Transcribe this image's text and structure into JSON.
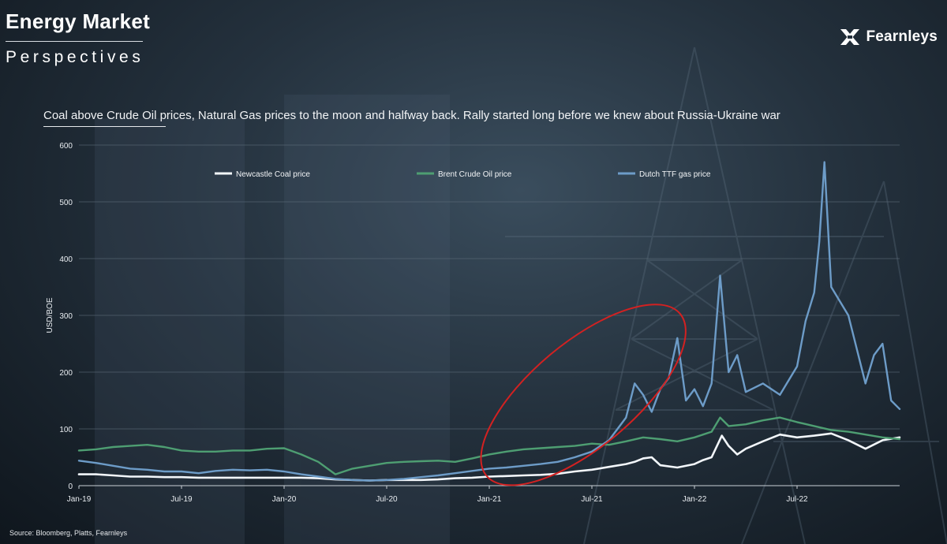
{
  "header": {
    "title": "Energy Market",
    "subtitle": "Perspectives",
    "brand": "Fearnleys"
  },
  "colors": {
    "coal": "#f2f6fa",
    "oil": "#4e9e72",
    "gas": "#6d9cc8",
    "ellipse": "#d32121",
    "grid": "#5d6c79"
  },
  "chart_data": {
    "type": "line",
    "title": "Coal above Crude Oil prices, Natural Gas prices to the moon and halfway back. Rally started long before we knew about Russia-Ukraine war",
    "xlabel": "",
    "ylabel": "USD/BOE",
    "ylim": [
      0,
      600
    ],
    "xlim": [
      0,
      48
    ],
    "x_unit": "months since Jan-19",
    "y_ticks": [
      "0",
      "100",
      "200",
      "300",
      "400",
      "500",
      "600"
    ],
    "x_ticks": [
      {
        "x": 0,
        "label": "Jan-19"
      },
      {
        "x": 6,
        "label": "Jul-19"
      },
      {
        "x": 12,
        "label": "Jan-20"
      },
      {
        "x": 18,
        "label": "Jul-20"
      },
      {
        "x": 24,
        "label": "Jan-21"
      },
      {
        "x": 30,
        "label": "Jul-21"
      },
      {
        "x": 36,
        "label": "Jan-22"
      },
      {
        "x": 42,
        "label": "Jul-22"
      }
    ],
    "legend": "top",
    "grid": true,
    "annotation": {
      "type": "ellipse",
      "note": "red ellipse highlighting rally start, approx Mar-21 to Feb-22"
    },
    "series": [
      {
        "name": "Newcastle Coal price",
        "key": "coal",
        "points": [
          [
            0,
            20
          ],
          [
            1,
            20
          ],
          [
            2,
            18
          ],
          [
            3,
            16
          ],
          [
            4,
            16
          ],
          [
            5,
            15
          ],
          [
            6,
            15
          ],
          [
            7,
            14
          ],
          [
            8,
            14
          ],
          [
            9,
            14
          ],
          [
            10,
            14
          ],
          [
            11,
            14
          ],
          [
            12,
            14
          ],
          [
            13,
            14
          ],
          [
            14,
            13
          ],
          [
            15,
            11
          ],
          [
            16,
            10
          ],
          [
            17,
            9
          ],
          [
            18,
            10
          ],
          [
            19,
            10
          ],
          [
            20,
            10
          ],
          [
            21,
            11
          ],
          [
            22,
            13
          ],
          [
            23,
            14
          ],
          [
            24,
            16
          ],
          [
            25,
            17
          ],
          [
            26,
            18
          ],
          [
            27,
            19
          ],
          [
            28,
            21
          ],
          [
            29,
            25
          ],
          [
            30,
            28
          ],
          [
            31,
            33
          ],
          [
            32,
            38
          ],
          [
            32.5,
            42
          ],
          [
            33,
            48
          ],
          [
            33.5,
            50
          ],
          [
            34,
            36
          ],
          [
            35,
            32
          ],
          [
            36,
            38
          ],
          [
            36.5,
            45
          ],
          [
            37,
            50
          ],
          [
            37.6,
            88
          ],
          [
            38,
            70
          ],
          [
            38.5,
            55
          ],
          [
            39,
            65
          ],
          [
            40,
            78
          ],
          [
            41,
            90
          ],
          [
            42,
            85
          ],
          [
            43,
            88
          ],
          [
            44,
            92
          ],
          [
            45,
            80
          ],
          [
            46,
            65
          ],
          [
            47,
            80
          ],
          [
            48,
            85
          ]
        ]
      },
      {
        "name": "Brent Crude Oil price",
        "key": "oil",
        "points": [
          [
            0,
            62
          ],
          [
            1,
            64
          ],
          [
            2,
            68
          ],
          [
            3,
            70
          ],
          [
            4,
            72
          ],
          [
            5,
            68
          ],
          [
            6,
            62
          ],
          [
            7,
            60
          ],
          [
            8,
            60
          ],
          [
            9,
            62
          ],
          [
            10,
            62
          ],
          [
            11,
            65
          ],
          [
            12,
            66
          ],
          [
            13,
            55
          ],
          [
            14,
            42
          ],
          [
            15,
            20
          ],
          [
            16,
            30
          ],
          [
            17,
            35
          ],
          [
            18,
            40
          ],
          [
            19,
            42
          ],
          [
            20,
            43
          ],
          [
            21,
            44
          ],
          [
            22,
            42
          ],
          [
            23,
            48
          ],
          [
            24,
            55
          ],
          [
            25,
            60
          ],
          [
            26,
            64
          ],
          [
            27,
            66
          ],
          [
            28,
            68
          ],
          [
            29,
            70
          ],
          [
            30,
            74
          ],
          [
            31,
            72
          ],
          [
            32,
            78
          ],
          [
            33,
            85
          ],
          [
            34,
            82
          ],
          [
            35,
            78
          ],
          [
            36,
            85
          ],
          [
            37,
            95
          ],
          [
            37.5,
            120
          ],
          [
            38,
            105
          ],
          [
            39,
            108
          ],
          [
            40,
            115
          ],
          [
            41,
            120
          ],
          [
            42,
            112
          ],
          [
            43,
            105
          ],
          [
            44,
            98
          ],
          [
            45,
            95
          ],
          [
            46,
            90
          ],
          [
            47,
            85
          ],
          [
            48,
            82
          ]
        ]
      },
      {
        "name": "Dutch TTF gas price",
        "key": "gas",
        "points": [
          [
            0,
            44
          ],
          [
            1,
            40
          ],
          [
            2,
            35
          ],
          [
            3,
            30
          ],
          [
            4,
            28
          ],
          [
            5,
            25
          ],
          [
            6,
            25
          ],
          [
            7,
            22
          ],
          [
            8,
            26
          ],
          [
            9,
            28
          ],
          [
            10,
            27
          ],
          [
            11,
            28
          ],
          [
            12,
            25
          ],
          [
            13,
            20
          ],
          [
            14,
            16
          ],
          [
            15,
            12
          ],
          [
            16,
            10
          ],
          [
            17,
            9
          ],
          [
            18,
            10
          ],
          [
            19,
            12
          ],
          [
            20,
            15
          ],
          [
            21,
            18
          ],
          [
            22,
            22
          ],
          [
            23,
            26
          ],
          [
            24,
            30
          ],
          [
            25,
            32
          ],
          [
            26,
            35
          ],
          [
            27,
            38
          ],
          [
            28,
            42
          ],
          [
            29,
            50
          ],
          [
            30,
            60
          ],
          [
            31,
            80
          ],
          [
            32,
            120
          ],
          [
            32.5,
            180
          ],
          [
            33,
            160
          ],
          [
            33.5,
            130
          ],
          [
            34,
            170
          ],
          [
            34.5,
            190
          ],
          [
            35,
            260
          ],
          [
            35.5,
            150
          ],
          [
            36,
            170
          ],
          [
            36.5,
            140
          ],
          [
            37,
            180
          ],
          [
            37.5,
            370
          ],
          [
            38,
            200
          ],
          [
            38.5,
            230
          ],
          [
            39,
            165
          ],
          [
            40,
            180
          ],
          [
            41,
            160
          ],
          [
            42,
            210
          ],
          [
            42.5,
            290
          ],
          [
            43,
            340
          ],
          [
            43.3,
            430
          ],
          [
            43.6,
            570
          ],
          [
            44,
            350
          ],
          [
            45,
            300
          ],
          [
            46,
            180
          ],
          [
            46.5,
            230
          ],
          [
            47,
            250
          ],
          [
            47.5,
            150
          ],
          [
            48,
            135
          ]
        ]
      }
    ]
  },
  "footer": {
    "source": "Source: Bloomberg, Platts, Fearnleys"
  }
}
